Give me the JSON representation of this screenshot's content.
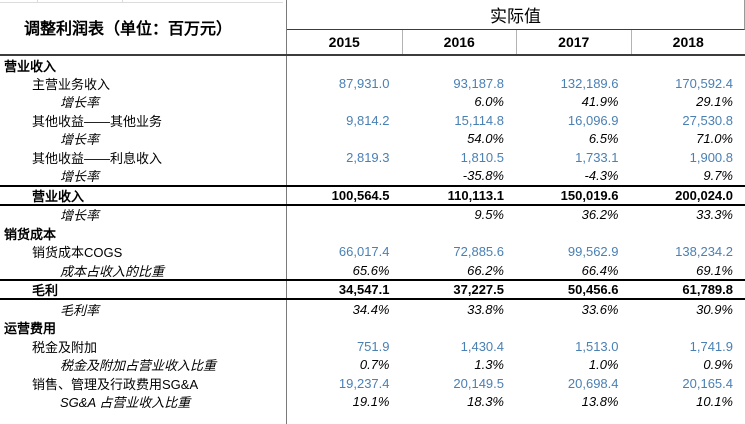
{
  "title": "调整利润表（单位：百万元）",
  "header": {
    "group_label": "实际值"
  },
  "colors": {
    "value_text": "#4a80b4",
    "text": "#000000",
    "heavy_border": "#000000",
    "dark_rule": "#3c3c3c",
    "column_divider": "#7a7a7a",
    "light_divider": "#b3b3b3",
    "background": "#ffffff"
  },
  "chart_data": {
    "type": "table",
    "title": "调整利润表（单位：百万元）",
    "column_group_label": "实际值",
    "columns": [
      "2015",
      "2016",
      "2017",
      "2018"
    ],
    "rows": [
      {
        "label": "营业收入",
        "style": "section",
        "values": [
          "",
          "",
          "",
          ""
        ]
      },
      {
        "label": "主营业务收入",
        "style": "value",
        "values": [
          "87,931.0",
          "93,187.8",
          "132,189.6",
          "170,592.4"
        ]
      },
      {
        "label": "增长率",
        "style": "pct",
        "values": [
          "",
          "6.0%",
          "41.9%",
          "29.1%"
        ]
      },
      {
        "label": "其他收益——其他业务",
        "style": "value",
        "values": [
          "9,814.2",
          "15,114.8",
          "16,096.9",
          "27,530.8"
        ]
      },
      {
        "label": "增长率",
        "style": "pct",
        "values": [
          "",
          "54.0%",
          "6.5%",
          "71.0%"
        ]
      },
      {
        "label": "其他收益——利息收入",
        "style": "value",
        "values": [
          "2,819.3",
          "1,810.5",
          "1,733.1",
          "1,900.8"
        ]
      },
      {
        "label": "增长率",
        "style": "pct",
        "values": [
          "",
          "-35.8%",
          "-4.3%",
          "9.7%"
        ]
      },
      {
        "label": "营业收入",
        "style": "total",
        "values": [
          "100,564.5",
          "110,113.1",
          "150,019.6",
          "200,024.0"
        ]
      },
      {
        "label": "增长率",
        "style": "pct",
        "values": [
          "",
          "9.5%",
          "36.2%",
          "33.3%"
        ]
      },
      {
        "label": "销货成本",
        "style": "section",
        "values": [
          "",
          "",
          "",
          ""
        ]
      },
      {
        "label": "销货成本COGS",
        "style": "value",
        "values": [
          "66,017.4",
          "72,885.6",
          "99,562.9",
          "138,234.2"
        ]
      },
      {
        "label": "成本占收入的比重",
        "style": "pct",
        "values": [
          "65.6%",
          "66.2%",
          "66.4%",
          "69.1%"
        ]
      },
      {
        "label": "毛利",
        "style": "total",
        "values": [
          "34,547.1",
          "37,227.5",
          "50,456.6",
          "61,789.8"
        ]
      },
      {
        "label": "毛利率",
        "style": "pct",
        "values": [
          "34.4%",
          "33.8%",
          "33.6%",
          "30.9%"
        ]
      },
      {
        "label": "运营费用",
        "style": "section",
        "values": [
          "",
          "",
          "",
          ""
        ]
      },
      {
        "label": "税金及附加",
        "style": "value",
        "values": [
          "751.9",
          "1,430.4",
          "1,513.0",
          "1,741.9"
        ]
      },
      {
        "label": "税金及附加占营业收入比重",
        "style": "pct",
        "values": [
          "0.7%",
          "1.3%",
          "1.0%",
          "0.9%"
        ]
      },
      {
        "label": "销售、管理及行政费用SG&A",
        "style": "value",
        "values": [
          "19,237.4",
          "20,149.5",
          "20,698.4",
          "20,165.4"
        ]
      },
      {
        "label": "SG&A 占营业收入比重",
        "style": "pct",
        "values": [
          "19.1%",
          "18.3%",
          "13.8%",
          "10.1%"
        ]
      }
    ]
  }
}
